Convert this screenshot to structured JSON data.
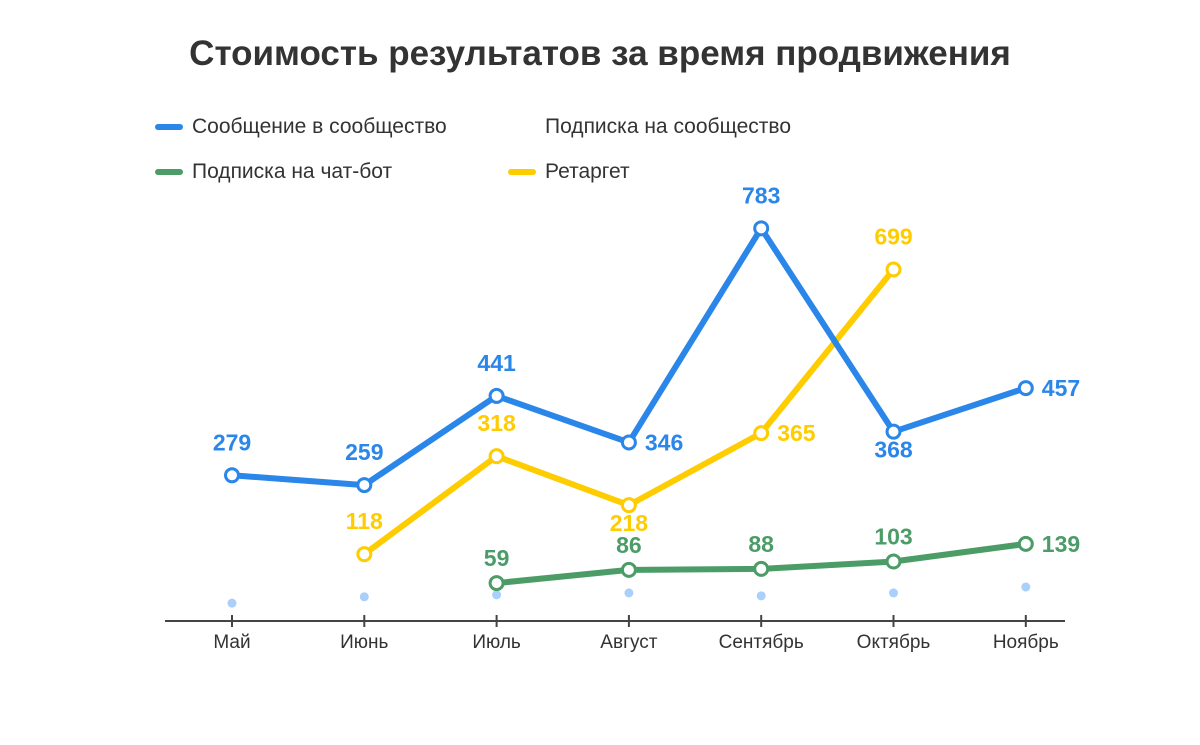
{
  "chart_data": {
    "type": "line",
    "title": "Стоимость результатов за время продвижения",
    "categories": [
      "Май",
      "Июнь",
      "Июль",
      "Август",
      "Сентябрь",
      "Октябрь",
      "Ноябрь"
    ],
    "series": [
      {
        "name": "Сообщение в сообщество",
        "color": "#2a86e8",
        "values": [
          279,
          259,
          441,
          346,
          783,
          368,
          457
        ],
        "labeled": true
      },
      {
        "name": "Подписка на сообщество",
        "color": "#a9d0fb",
        "values": [
          18,
          31,
          35,
          39,
          33,
          39,
          51
        ],
        "labeled": false,
        "dots_only": true
      },
      {
        "name": "Подписка на чат-бот",
        "color": "#4c9c68",
        "values": [
          null,
          null,
          59,
          86,
          88,
          103,
          139
        ],
        "labeled": true
      },
      {
        "name": "Ретаргет",
        "color": "#ffcc00",
        "values": [
          null,
          118,
          318,
          218,
          365,
          699,
          null
        ],
        "labeled": true
      }
    ],
    "legend_position": "top-left",
    "grid": false,
    "ylim": [
      0,
      800
    ]
  }
}
